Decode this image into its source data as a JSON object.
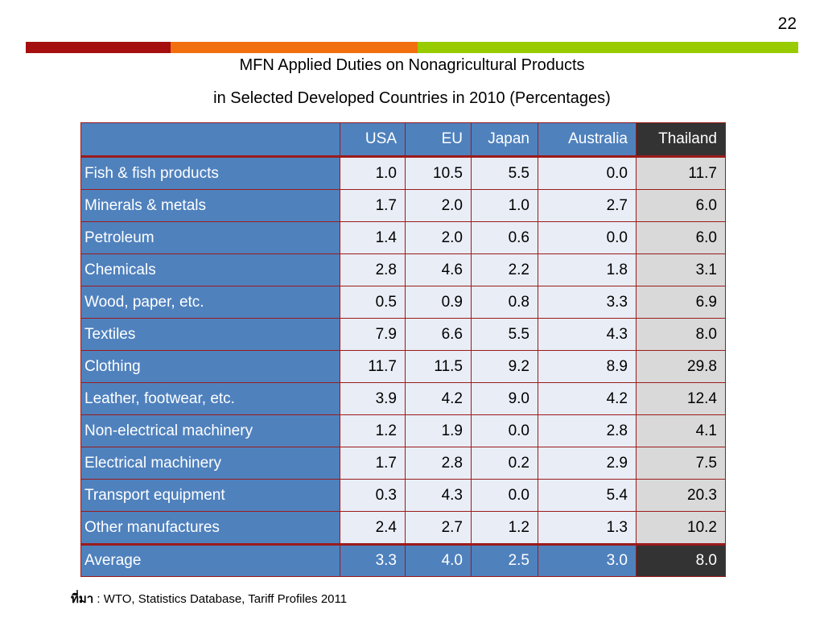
{
  "page_number": "22",
  "accent_colors": [
    "#a50f0f",
    "#f26f0f",
    "#99cc00"
  ],
  "title_line1": "MFN Applied Duties on Nonagricultural Products",
  "title_line2": "in Selected Developed Countries in 2010 (Percentages)",
  "table": {
    "columns": [
      "USA",
      "EU",
      "Japan",
      "Australia",
      "Thailand"
    ],
    "rows": [
      {
        "category": "Fish & fish products",
        "values": [
          "1.0",
          "10.5",
          "5.5",
          "0.0",
          "11.7"
        ]
      },
      {
        "category": "Minerals & metals",
        "values": [
          "1.7",
          "2.0",
          "1.0",
          "2.7",
          "6.0"
        ]
      },
      {
        "category": "Petroleum",
        "values": [
          "1.4",
          "2.0",
          "0.6",
          "0.0",
          "6.0"
        ]
      },
      {
        "category": "Chemicals",
        "values": [
          "2.8",
          "4.6",
          "2.2",
          "1.8",
          "3.1"
        ]
      },
      {
        "category": "Wood, paper, etc.",
        "values": [
          "0.5",
          "0.9",
          "0.8",
          "3.3",
          "6.9"
        ]
      },
      {
        "category": "Textiles",
        "values": [
          "7.9",
          "6.6",
          "5.5",
          "4.3",
          "8.0"
        ]
      },
      {
        "category": "Clothing",
        "values": [
          "11.7",
          "11.5",
          "9.2",
          "8.9",
          "29.8"
        ]
      },
      {
        "category": "Leather, footwear, etc.",
        "values": [
          "3.9",
          "4.2",
          "9.0",
          "4.2",
          "12.4"
        ]
      },
      {
        "category": "Non-electrical machinery",
        "values": [
          "1.2",
          "1.9",
          "0.0",
          "2.8",
          "4.1"
        ]
      },
      {
        "category": "Electrical machinery",
        "values": [
          "1.7",
          "2.8",
          "0.2",
          "2.9",
          "7.5"
        ]
      },
      {
        "category": "Transport equipment",
        "values": [
          "0.3",
          "4.3",
          "0.0",
          "5.4",
          "20.3"
        ]
      },
      {
        "category": "Other manufactures",
        "values": [
          "2.4",
          "2.7",
          "1.2",
          "1.3",
          "10.2"
        ]
      }
    ],
    "average": {
      "category": "Average",
      "values": [
        "3.3",
        "4.0",
        "2.5",
        "3.0",
        "8.0"
      ]
    }
  },
  "source": {
    "label": "ที่มา",
    "separator": " : ",
    "text": "WTO, Statistics Database, Tariff Profiles 2011"
  }
}
